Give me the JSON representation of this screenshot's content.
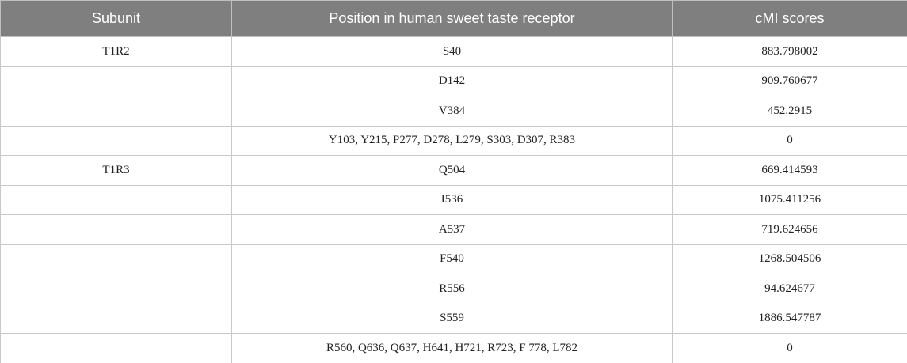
{
  "table": {
    "header": [
      "Subunit",
      "Position in human sweet taste receptor",
      "cMI scores"
    ],
    "rows": [
      {
        "subunit": "T1R2",
        "position": "S40",
        "score": "883.798002"
      },
      {
        "position": "D142",
        "score": "909.760677"
      },
      {
        "position": "V384",
        "score": "452.2915"
      },
      {
        "position": "Y103, Y215, P277, D278, L279, S303, D307, R383",
        "score": "0"
      },
      {
        "subunit": "T1R3",
        "position": "Q504",
        "score": "669.414593"
      },
      {
        "position": "I536",
        "score": "1075.411256"
      },
      {
        "position": "A537",
        "score": "719.624656"
      },
      {
        "position": "F540",
        "score": "1268.504506"
      },
      {
        "position": "R556",
        "score": "94.624677"
      },
      {
        "position": "S559",
        "score": "1886.547787"
      },
      {
        "position": "R560, Q636, Q637, H641, H721, R723, F 778, L782",
        "score": "0"
      }
    ]
  }
}
